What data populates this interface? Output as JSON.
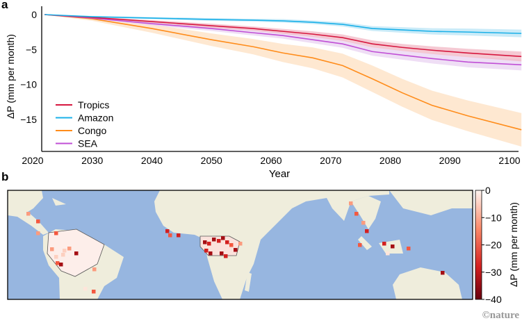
{
  "panel_a_label": "a",
  "panel_b_label": "b",
  "credit": "©nature",
  "chart_data": [
    {
      "type": "line",
      "title": "",
      "xlabel": "Year",
      "ylabel": "ΔP (mm per month)",
      "xlim": [
        2020,
        2102
      ],
      "ylim": [
        -19,
        1
      ],
      "xticks": [
        2020,
        2030,
        2040,
        2050,
        2060,
        2070,
        2080,
        2090,
        2100
      ],
      "yticks": [
        0,
        -5,
        -10,
        -15
      ],
      "ytick_labels": [
        "0",
        "−5",
        "−10",
        "−15"
      ],
      "legend_position": "bottom-left",
      "x": [
        2022,
        2030,
        2040,
        2050,
        2057,
        2062,
        2067,
        2072,
        2077,
        2082,
        2087,
        2093,
        2102
      ],
      "series": [
        {
          "name": "Tropics",
          "color": "#d6173f",
          "band": "#f2b7c4",
          "values": [
            0,
            -0.4,
            -1.0,
            -1.6,
            -2.0,
            -2.4,
            -2.8,
            -3.3,
            -4.2,
            -4.7,
            -5.1,
            -5.5,
            -6.0
          ],
          "spread": [
            0,
            0.1,
            0.2,
            0.3,
            0.3,
            0.35,
            0.4,
            0.45,
            0.5,
            0.5,
            0.55,
            0.6,
            0.7
          ]
        },
        {
          "name": "Amazon",
          "color": "#1ab0e8",
          "band": "#b8e4f6",
          "values": [
            0,
            -0.3,
            -0.5,
            -0.7,
            -0.8,
            -0.9,
            -1.1,
            -1.4,
            -2.0,
            -2.2,
            -2.4,
            -2.5,
            -2.7
          ],
          "spread": [
            0,
            0.1,
            0.15,
            0.2,
            0.2,
            0.25,
            0.25,
            0.3,
            0.35,
            0.4,
            0.45,
            0.5,
            0.55
          ]
        },
        {
          "name": "Congo",
          "color": "#ff8c1a",
          "band": "#fde0c2",
          "values": [
            0,
            -0.6,
            -2.0,
            -3.6,
            -4.6,
            -5.5,
            -6.2,
            -7.3,
            -9.2,
            -11.2,
            -13.0,
            -14.5,
            -16.5
          ],
          "spread": [
            0,
            0.3,
            0.6,
            0.9,
            1.1,
            1.3,
            1.5,
            1.7,
            1.9,
            2.0,
            2.1,
            2.2,
            2.4
          ]
        },
        {
          "name": "SEA",
          "color": "#c04fd6",
          "band": "#ead3f2",
          "values": [
            0,
            -0.5,
            -1.3,
            -2.0,
            -2.6,
            -3.0,
            -3.6,
            -4.2,
            -5.3,
            -5.8,
            -6.3,
            -6.8,
            -7.2
          ],
          "spread": [
            0,
            0.15,
            0.25,
            0.35,
            0.4,
            0.45,
            0.5,
            0.55,
            0.6,
            0.65,
            0.7,
            0.75,
            0.8
          ]
        }
      ]
    },
    {
      "type": "heatmap",
      "title": "",
      "colorbar_label": "ΔP (mm per month)",
      "colorbar_range": [
        -40,
        0
      ],
      "colorbar_ticks": [
        "0",
        "−10",
        "−20",
        "−30",
        "−40"
      ],
      "regions": [
        "Amazon",
        "Congo",
        "SEA"
      ]
    }
  ]
}
